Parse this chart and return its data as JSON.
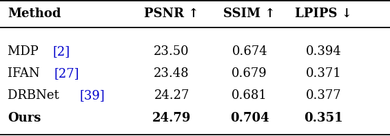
{
  "col_headers": [
    "Method",
    "PSNR ↑",
    "SSIM ↑",
    "LPIPS ↓"
  ],
  "rows": [
    {
      "method_base": "MDP ",
      "ref": "[2]",
      "psnr": "23.50",
      "ssim": "0.674",
      "lpips": "0.394",
      "bold": false
    },
    {
      "method_base": "IFAN ",
      "ref": "[27]",
      "psnr": "23.48",
      "ssim": "0.679",
      "lpips": "0.371",
      "bold": false
    },
    {
      "method_base": "DRBNet ",
      "ref": "[39]",
      "psnr": "24.27",
      "ssim": "0.681",
      "lpips": "0.377",
      "bold": false
    },
    {
      "method_base": "Ours",
      "ref": "",
      "psnr": "24.79",
      "ssim": "0.704",
      "lpips": "0.351",
      "bold": true
    }
  ],
  "text_color": "#000000",
  "ref_color": "#0000cc",
  "background_color": "#ffffff",
  "fontsize": 13.0,
  "fig_width": 5.66,
  "fig_height": 1.98,
  "dpi": 100
}
